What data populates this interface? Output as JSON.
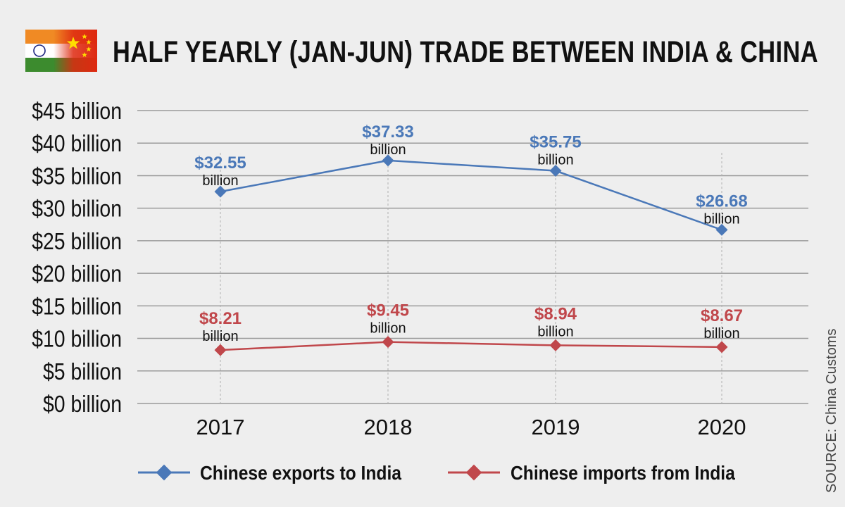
{
  "header": {
    "title": "HALF YEARLY (JAN-JUN) TRADE BETWEEN INDIA & CHINA",
    "flag_icon": "india-china-flags-icon"
  },
  "source": "SOURCE: China Customs",
  "colors": {
    "exports": "#4a78b8",
    "imports": "#c0474b",
    "grid": "#9a9a9a",
    "background": "#eeeeee"
  },
  "chart_data": {
    "type": "line",
    "title": "HALF YEARLY (JAN-JUN) TRADE BETWEEN INDIA & CHINA",
    "xlabel": "",
    "ylabel": "",
    "categories": [
      "2017",
      "2018",
      "2019",
      "2020"
    ],
    "y_ticks": [
      "$0 billion",
      "$5 billion",
      "$10 billion",
      "$15 billion",
      "$20 billion",
      "$25 billion",
      "$30 billion",
      "$35 billion",
      "$40 billion",
      "$45 billion"
    ],
    "ylim": [
      0,
      45
    ],
    "y_step": 5,
    "legend_position": "bottom",
    "series": [
      {
        "name": "Chinese exports to India",
        "color": "#4a78b8",
        "values": [
          32.55,
          37.33,
          35.75,
          26.68
        ],
        "labels": [
          "$32.55",
          "$37.33",
          "$35.75",
          "$26.68"
        ],
        "unit_label": "billion"
      },
      {
        "name": "Chinese imports from India",
        "color": "#c0474b",
        "values": [
          8.21,
          9.45,
          8.94,
          8.67
        ],
        "labels": [
          "$8.21",
          "$9.45",
          "$8.94",
          "$8.67"
        ],
        "unit_label": "billion"
      }
    ]
  }
}
